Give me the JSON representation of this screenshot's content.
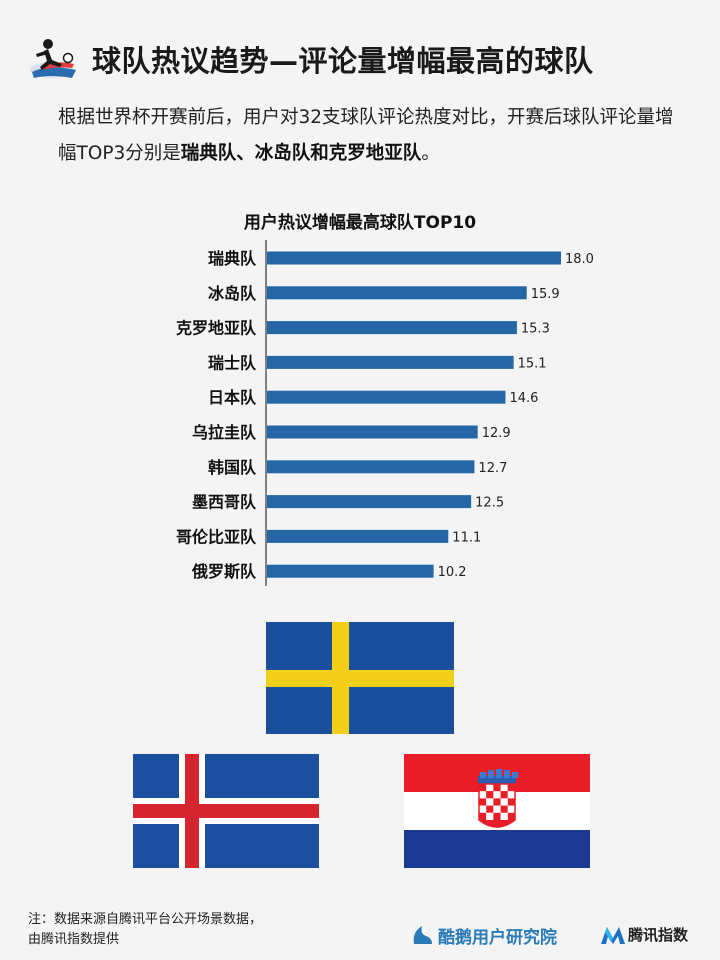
{
  "header": {
    "title": "球队热议趋势—评论量增幅最高的球队",
    "icon": "football-player-icon"
  },
  "intro": {
    "text_prefix": "根据世界杯开赛前后，用户对32支球队评论热度对比，开赛后球队评论量增幅TOP3分别是",
    "text_bold": "瑞典队、冰岛队和克罗地亚队",
    "text_suffix": "。"
  },
  "chart_data": {
    "type": "bar",
    "orientation": "horizontal",
    "title": "用户热议增幅最高球队TOP10",
    "categories": [
      "瑞典队",
      "冰岛队",
      "克罗地亚队",
      "瑞士队",
      "日本队",
      "乌拉圭队",
      "韩国队",
      "墨西哥队",
      "哥伦比亚队",
      "俄罗斯队"
    ],
    "values": [
      18.0,
      15.9,
      15.3,
      15.1,
      14.6,
      12.9,
      12.7,
      12.5,
      11.1,
      10.2
    ],
    "value_labels": [
      "18.0",
      "15.9",
      "15.3",
      "15.1",
      "14.6",
      "12.9",
      "12.7",
      "12.5",
      "11.1",
      "10.2"
    ],
    "xlim": [
      0,
      18
    ],
    "bar_color": "#2466a6",
    "grid": false,
    "legend": "none"
  },
  "flags": {
    "sweden": {
      "icon": "sweden-flag-icon",
      "blue": "#1a4f9c",
      "yellow": "#f4cf1a"
    },
    "iceland": {
      "icon": "iceland-flag-icon",
      "blue": "#1d4fa0",
      "red": "#d5262f",
      "white": "#ffffff"
    },
    "croatia": {
      "icon": "croatia-flag-icon",
      "red": "#e81d27",
      "white": "#ffffff",
      "blue": "#1b3892"
    }
  },
  "footer": {
    "note_line1": "注：数据来源自腾讯平台公开场景数据，",
    "note_line2": "由腾讯指数提供",
    "brand1": "酷鹅用户研究院",
    "brand2": "腾讯指数"
  }
}
